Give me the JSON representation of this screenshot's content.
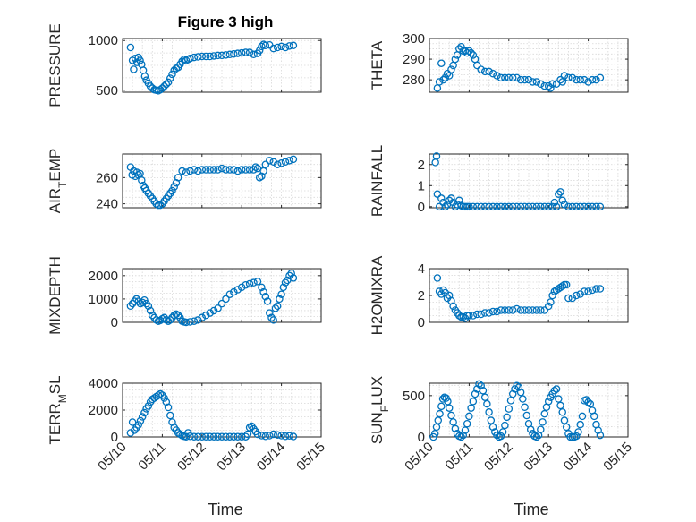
{
  "title": "Figure 3 high",
  "colors": {
    "marker": "#0072BD",
    "axis": "#262626",
    "grid": "#d8d8d8"
  },
  "x_axis": {
    "label": "Time",
    "ticks": [
      "05/10",
      "05/11",
      "05/12",
      "05/13",
      "05/14",
      "05/15"
    ],
    "tick_values": [
      10,
      11,
      12,
      13,
      14,
      15
    ],
    "range": [
      10,
      15
    ]
  },
  "chart_data": [
    {
      "type": "scatter",
      "id": "pressure",
      "ylabel_parts": [
        [
          "PRESSURE",
          "normal"
        ]
      ],
      "ylim": [
        480,
        1020
      ],
      "yticks": [
        500,
        1000
      ],
      "yticklabels": [
        "500",
        "1000"
      ],
      "x": [
        10.2,
        10.25,
        10.28,
        10.32,
        10.36,
        10.4,
        10.44,
        10.48,
        10.52,
        10.56,
        10.6,
        10.65,
        10.7,
        10.75,
        10.8,
        10.85,
        10.9,
        10.95,
        11.0,
        11.05,
        11.1,
        11.15,
        11.2,
        11.25,
        11.3,
        11.35,
        11.4,
        11.45,
        11.5,
        11.55,
        11.6,
        11.65,
        11.7,
        11.8,
        11.9,
        12.0,
        12.1,
        12.2,
        12.3,
        12.4,
        12.5,
        12.6,
        12.7,
        12.8,
        12.9,
        13.0,
        13.1,
        13.2,
        13.3,
        13.4,
        13.45,
        13.5,
        13.55,
        13.6,
        13.7,
        13.8,
        13.9,
        14.0,
        14.1,
        14.2,
        14.3
      ],
      "y": [
        930,
        800,
        710,
        820,
        780,
        830,
        800,
        760,
        700,
        640,
        600,
        570,
        540,
        520,
        505,
        500,
        495,
        505,
        520,
        540,
        560,
        580,
        620,
        660,
        700,
        720,
        730,
        760,
        790,
        810,
        800,
        810,
        820,
        830,
        835,
        840,
        840,
        840,
        845,
        850,
        850,
        855,
        860,
        865,
        870,
        875,
        880,
        880,
        860,
        870,
        900,
        940,
        960,
        950,
        955,
        920,
        930,
        940,
        930,
        945,
        950
      ]
    },
    {
      "type": "scatter",
      "id": "theta",
      "ylabel_parts": [
        [
          "THETA",
          "normal"
        ]
      ],
      "ylim": [
        274,
        300
      ],
      "yticks": [
        280,
        290,
        300
      ],
      "yticklabels": [
        "280",
        "290",
        "300"
      ],
      "x": [
        10.2,
        10.25,
        10.3,
        10.35,
        10.4,
        10.45,
        10.5,
        10.55,
        10.6,
        10.65,
        10.7,
        10.75,
        10.8,
        10.85,
        10.9,
        10.95,
        11.0,
        11.05,
        11.1,
        11.15,
        11.2,
        11.3,
        11.4,
        11.5,
        11.6,
        11.7,
        11.8,
        11.9,
        12.0,
        12.1,
        12.2,
        12.3,
        12.4,
        12.5,
        12.6,
        12.7,
        12.8,
        12.9,
        13.0,
        13.05,
        13.1,
        13.2,
        13.3,
        13.35,
        13.4,
        13.5,
        13.6,
        13.7,
        13.8,
        13.9,
        14.0,
        14.1,
        14.2,
        14.3
      ],
      "y": [
        276,
        279,
        288,
        280,
        281,
        283,
        282,
        285,
        287,
        290,
        292,
        295,
        296,
        294,
        294,
        293,
        294,
        293,
        292,
        290,
        287,
        285,
        284,
        284,
        283,
        282,
        281,
        281,
        281,
        281,
        281,
        280,
        280,
        280,
        279,
        279,
        278,
        277,
        277,
        276,
        278,
        278,
        280,
        279,
        282,
        281,
        281,
        280,
        280,
        280,
        279,
        280,
        280,
        281
      ]
    },
    {
      "type": "scatter",
      "id": "air-temp",
      "ylabel_parts": [
        [
          "AIR",
          "normal"
        ],
        [
          "T",
          "sub"
        ],
        [
          "EMP",
          "normal"
        ]
      ],
      "ylim": [
        237,
        278
      ],
      "yticks": [
        240,
        260
      ],
      "yticklabels": [
        "240",
        "260"
      ],
      "x": [
        10.2,
        10.24,
        10.28,
        10.32,
        10.36,
        10.4,
        10.44,
        10.48,
        10.52,
        10.56,
        10.6,
        10.65,
        10.7,
        10.75,
        10.8,
        10.85,
        10.9,
        10.95,
        11.0,
        11.05,
        11.1,
        11.15,
        11.2,
        11.25,
        11.3,
        11.35,
        11.4,
        11.5,
        11.6,
        11.7,
        11.8,
        11.9,
        12.0,
        12.1,
        12.2,
        12.3,
        12.4,
        12.5,
        12.6,
        12.7,
        12.8,
        12.9,
        13.0,
        13.1,
        13.2,
        13.3,
        13.35,
        13.4,
        13.45,
        13.5,
        13.55,
        13.6,
        13.7,
        13.8,
        13.9,
        14.0,
        14.1,
        14.2,
        14.3
      ],
      "y": [
        268,
        262,
        265,
        261,
        264,
        262,
        263,
        258,
        254,
        252,
        250,
        248,
        246,
        244,
        242,
        240,
        239,
        239,
        240,
        242,
        244,
        246,
        248,
        250,
        253,
        256,
        260,
        265,
        264,
        265,
        266,
        265,
        266,
        266,
        266,
        266,
        266,
        267,
        266,
        266,
        266,
        265,
        266,
        266,
        266,
        266,
        268,
        267,
        260,
        261,
        265,
        270,
        273,
        272,
        270,
        271,
        272,
        273,
        274
      ]
    },
    {
      "type": "scatter",
      "id": "rainfall",
      "ylabel_parts": [
        [
          "RAINFALL",
          "normal"
        ]
      ],
      "ylim": [
        -0.05,
        2.5
      ],
      "yticks": [
        0,
        1,
        2
      ],
      "yticklabels": [
        "0",
        "1",
        "2"
      ],
      "x": [
        10.15,
        10.18,
        10.2,
        10.25,
        10.3,
        10.35,
        10.4,
        10.45,
        10.5,
        10.55,
        10.6,
        10.65,
        10.7,
        10.75,
        10.8,
        10.85,
        10.9,
        10.95,
        11.0,
        11.1,
        11.2,
        11.3,
        11.4,
        11.5,
        11.6,
        11.7,
        11.8,
        11.9,
        12.0,
        12.1,
        12.2,
        12.3,
        12.4,
        12.5,
        12.6,
        12.7,
        12.8,
        12.9,
        13.0,
        13.1,
        13.15,
        13.2,
        13.25,
        13.3,
        13.35,
        13.4,
        13.5,
        13.6,
        13.7,
        13.8,
        13.9,
        14.0,
        14.1,
        14.2,
        14.3
      ],
      "y": [
        2.1,
        2.4,
        0.6,
        0.0,
        0.4,
        0.2,
        0.0,
        0.1,
        0.3,
        0.4,
        0.2,
        0.0,
        0.1,
        0.3,
        0.05,
        0.0,
        0.0,
        0.0,
        0.0,
        0.0,
        0.0,
        0.0,
        0.0,
        0.0,
        0.0,
        0.0,
        0.0,
        0.0,
        0.0,
        0.0,
        0.0,
        0.0,
        0.0,
        0.0,
        0.0,
        0.0,
        0.0,
        0.0,
        0.0,
        0.0,
        0.2,
        0.0,
        0.6,
        0.7,
        0.3,
        0.1,
        0.0,
        0.0,
        0.0,
        0.0,
        0.0,
        0.0,
        0.0,
        0.0,
        0.0
      ]
    },
    {
      "type": "scatter",
      "id": "mixdepth",
      "ylabel_parts": [
        [
          "MIXDEPTH",
          "normal"
        ]
      ],
      "ylim": [
        0,
        2300
      ],
      "yticks": [
        0,
        1000,
        2000
      ],
      "yticklabels": [
        "0",
        "1000",
        "2000"
      ],
      "x": [
        10.2,
        10.25,
        10.3,
        10.35,
        10.4,
        10.45,
        10.5,
        10.55,
        10.6,
        10.65,
        10.7,
        10.75,
        10.8,
        10.85,
        10.9,
        10.95,
        11.0,
        11.05,
        11.1,
        11.15,
        11.2,
        11.25,
        11.3,
        11.35,
        11.4,
        11.45,
        11.5,
        11.55,
        11.6,
        11.7,
        11.8,
        11.9,
        12.0,
        12.1,
        12.2,
        12.3,
        12.4,
        12.5,
        12.6,
        12.7,
        12.8,
        12.9,
        13.0,
        13.1,
        13.2,
        13.3,
        13.4,
        13.5,
        13.55,
        13.6,
        13.65,
        13.7,
        13.75,
        13.8,
        13.85,
        13.9,
        13.95,
        14.0,
        14.05,
        14.1,
        14.15,
        14.2,
        14.25,
        14.3
      ],
      "y": [
        700,
        800,
        900,
        1000,
        900,
        800,
        850,
        950,
        800,
        700,
        500,
        300,
        200,
        100,
        50,
        80,
        150,
        200,
        100,
        50,
        100,
        200,
        300,
        350,
        300,
        200,
        50,
        20,
        0,
        20,
        50,
        100,
        200,
        300,
        400,
        500,
        600,
        800,
        1000,
        1200,
        1300,
        1400,
        1500,
        1600,
        1650,
        1700,
        1750,
        1500,
        1300,
        1100,
        900,
        400,
        200,
        100,
        600,
        700,
        1000,
        1200,
        1500,
        1700,
        1800,
        2000,
        2100,
        1900
      ]
    },
    {
      "type": "scatter",
      "id": "h2omixra",
      "ylabel_parts": [
        [
          "H2OMIXRA",
          "normal"
        ]
      ],
      "ylim": [
        0,
        4
      ],
      "yticks": [
        0,
        2,
        4
      ],
      "yticklabels": [
        "0",
        "2",
        "4"
      ],
      "x": [
        10.2,
        10.25,
        10.3,
        10.35,
        10.4,
        10.45,
        10.5,
        10.55,
        10.6,
        10.65,
        10.7,
        10.75,
        10.8,
        10.85,
        10.9,
        10.95,
        11.0,
        11.1,
        11.2,
        11.3,
        11.4,
        11.5,
        11.6,
        11.7,
        11.8,
        11.9,
        12.0,
        12.1,
        12.2,
        12.3,
        12.4,
        12.5,
        12.6,
        12.7,
        12.8,
        12.9,
        13.0,
        13.05,
        13.1,
        13.15,
        13.2,
        13.25,
        13.3,
        13.35,
        13.4,
        13.45,
        13.5,
        13.6,
        13.7,
        13.8,
        13.9,
        14.0,
        14.1,
        14.2,
        14.3
      ],
      "y": [
        3.3,
        2.3,
        2.1,
        2.4,
        2.2,
        1.8,
        2.0,
        1.6,
        1.2,
        0.9,
        0.7,
        0.5,
        0.4,
        0.4,
        0.3,
        0.5,
        0.5,
        0.5,
        0.6,
        0.6,
        0.7,
        0.7,
        0.8,
        0.8,
        0.9,
        0.9,
        0.9,
        0.9,
        1.0,
        0.9,
        0.9,
        0.9,
        0.9,
        0.9,
        0.9,
        0.9,
        1.2,
        1.5,
        2.0,
        2.3,
        2.4,
        2.5,
        2.6,
        2.7,
        2.8,
        2.8,
        1.8,
        1.8,
        2.0,
        2.1,
        2.3,
        2.3,
        2.4,
        2.5,
        2.5
      ]
    },
    {
      "type": "scatter",
      "id": "terr-msl",
      "ylabel_parts": [
        [
          "TERR",
          "normal"
        ],
        [
          "M",
          "sub"
        ],
        [
          "SL",
          "normal"
        ]
      ],
      "ylim": [
        0,
        4000
      ],
      "yticks": [
        0,
        2000,
        4000
      ],
      "yticklabels": [
        "0",
        "2000",
        "4000"
      ],
      "x": [
        10.2,
        10.25,
        10.3,
        10.35,
        10.4,
        10.45,
        10.5,
        10.55,
        10.6,
        10.65,
        10.7,
        10.75,
        10.8,
        10.85,
        10.9,
        10.95,
        11.0,
        11.05,
        11.1,
        11.15,
        11.2,
        11.25,
        11.3,
        11.35,
        11.4,
        11.45,
        11.5,
        11.55,
        11.6,
        11.65,
        11.7,
        11.8,
        11.9,
        12.0,
        12.1,
        12.2,
        12.3,
        12.4,
        12.5,
        12.6,
        12.7,
        12.8,
        12.9,
        13.0,
        13.1,
        13.15,
        13.2,
        13.25,
        13.3,
        13.35,
        13.4,
        13.5,
        13.6,
        13.7,
        13.8,
        13.9,
        14.0,
        14.1,
        14.2,
        14.3
      ],
      "y": [
        300,
        1100,
        500,
        700,
        900,
        1200,
        1500,
        1800,
        2100,
        2300,
        2600,
        2800,
        2900,
        3000,
        3100,
        3200,
        3100,
        2900,
        2600,
        2200,
        1600,
        1100,
        700,
        500,
        300,
        200,
        100,
        50,
        20,
        300,
        50,
        20,
        20,
        20,
        20,
        20,
        20,
        20,
        20,
        20,
        20,
        20,
        20,
        20,
        20,
        200,
        700,
        800,
        600,
        400,
        200,
        100,
        50,
        100,
        200,
        150,
        100,
        50,
        80,
        30
      ]
    },
    {
      "type": "scatter",
      "id": "sun-flux",
      "ylabel_parts": [
        [
          "SUN",
          "normal"
        ],
        [
          "F",
          "sub"
        ],
        [
          "LUX",
          "normal"
        ]
      ],
      "ylim": [
        0,
        650
      ],
      "yticks": [
        0,
        500
      ],
      "yticklabels": [
        "0",
        "500"
      ],
      "x": [
        10.1,
        10.14,
        10.18,
        10.22,
        10.26,
        10.3,
        10.34,
        10.38,
        10.42,
        10.46,
        10.5,
        10.55,
        10.6,
        10.65,
        10.7,
        10.75,
        10.8,
        10.85,
        10.9,
        10.95,
        11.0,
        11.05,
        11.1,
        11.15,
        11.2,
        11.25,
        11.3,
        11.35,
        11.4,
        11.45,
        11.5,
        11.55,
        11.6,
        11.65,
        11.7,
        11.75,
        11.8,
        11.85,
        11.9,
        11.95,
        12.0,
        12.05,
        12.1,
        12.15,
        12.2,
        12.25,
        12.3,
        12.35,
        12.4,
        12.45,
        12.5,
        12.55,
        12.6,
        12.65,
        12.7,
        12.75,
        12.8,
        12.85,
        12.9,
        12.95,
        13.0,
        13.05,
        13.1,
        13.15,
        13.2,
        13.25,
        13.3,
        13.35,
        13.4,
        13.45,
        13.5,
        13.55,
        13.6,
        13.65,
        13.7,
        13.75,
        13.8,
        13.85,
        13.9,
        13.95,
        14.0,
        14.05,
        14.1,
        14.15,
        14.2,
        14.25,
        14.3
      ],
      "y": [
        0,
        40,
        120,
        200,
        280,
        370,
        460,
        480,
        470,
        430,
        350,
        260,
        180,
        100,
        40,
        10,
        0,
        20,
        80,
        160,
        250,
        350,
        430,
        520,
        580,
        640,
        620,
        560,
        480,
        400,
        300,
        200,
        120,
        60,
        20,
        0,
        10,
        60,
        140,
        240,
        340,
        440,
        520,
        580,
        620,
        600,
        540,
        460,
        360,
        260,
        160,
        90,
        40,
        10,
        0,
        20,
        90,
        180,
        280,
        360,
        430,
        480,
        520,
        560,
        580,
        460,
        380,
        300,
        200,
        120,
        40,
        0,
        0,
        0,
        10,
        60,
        150,
        250,
        440,
        450,
        420,
        400,
        320,
        250,
        150,
        80,
        20
      ]
    }
  ]
}
